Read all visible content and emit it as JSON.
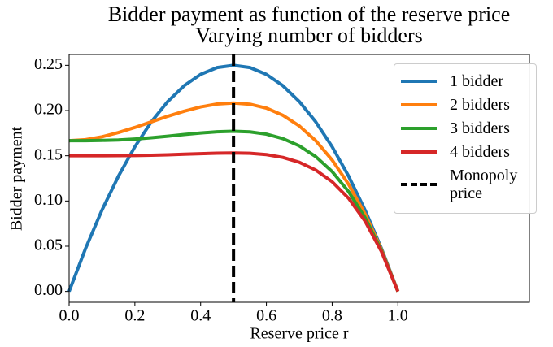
{
  "chart_data": {
    "type": "line",
    "title": "Bidder payment as function of the reserve price",
    "subtitle": "Varying number of bidders",
    "x_label": "Reserve price r",
    "y_label": "Bidder payment",
    "x": [
      0,
      0.05,
      0.1,
      0.15,
      0.2,
      0.25,
      0.3,
      0.35,
      0.4,
      0.45,
      0.5,
      0.55,
      0.6,
      0.65,
      0.7,
      0.75,
      0.8,
      0.85,
      0.9,
      0.95,
      1.0
    ],
    "series": [
      {
        "name": "1 bidder",
        "color": "#1f77b4",
        "values": [
          0,
          0.0475,
          0.09,
          0.1275,
          0.16,
          0.1875,
          0.21,
          0.2275,
          0.24,
          0.2475,
          0.25,
          0.2475,
          0.24,
          0.2275,
          0.21,
          0.1875,
          0.16,
          0.1275,
          0.09,
          0.0475,
          0
        ]
      },
      {
        "name": "2 bidders",
        "color": "#ff7f0e",
        "values": [
          0.1667,
          0.1678,
          0.171,
          0.1757,
          0.1813,
          0.1875,
          0.1937,
          0.1993,
          0.204,
          0.2072,
          0.2083,
          0.207,
          0.2027,
          0.1948,
          0.183,
          0.1667,
          0.1453,
          0.1185,
          0.0857,
          0.0463,
          0
        ]
      },
      {
        "name": "3 bidders",
        "color": "#2ca02c",
        "values": [
          0.1667,
          0.1667,
          0.167,
          0.1675,
          0.1685,
          0.1699,
          0.1716,
          0.1735,
          0.1752,
          0.1765,
          0.1771,
          0.1764,
          0.1739,
          0.169,
          0.161,
          0.1491,
          0.1325,
          0.1104,
          0.0816,
          0.0452,
          0
        ]
      },
      {
        "name": "4 bidders",
        "color": "#d62728",
        "values": [
          0.15,
          0.15,
          0.15,
          0.1501,
          0.1503,
          0.1506,
          0.1511,
          0.1517,
          0.1523,
          0.1529,
          0.1531,
          0.1527,
          0.1513,
          0.1482,
          0.1428,
          0.1342,
          0.1213,
          0.103,
          0.0778,
          0.0441,
          0
        ]
      }
    ],
    "vline": {
      "name": "Monopoly price",
      "x": 0.5,
      "color": "#000000"
    },
    "xlim": [
      0,
      1.4
    ],
    "xticks": [
      {
        "value": 0,
        "label": "0.0"
      },
      {
        "value": 0.2,
        "label": "0.2"
      },
      {
        "value": 0.4,
        "label": "0.4"
      },
      {
        "value": 0.6,
        "label": "0.6"
      },
      {
        "value": 0.8,
        "label": "0.8"
      },
      {
        "value": 1.0,
        "label": "1.0"
      }
    ],
    "ylim": [
      -0.012,
      0.262
    ],
    "yticks": [
      {
        "value": 0,
        "label": "0.00"
      },
      {
        "value": 0.05,
        "label": "0.05"
      },
      {
        "value": 0.1,
        "label": "0.10"
      },
      {
        "value": 0.15,
        "label": "0.15"
      },
      {
        "value": 0.2,
        "label": "0.20"
      },
      {
        "value": 0.25,
        "label": "0.25"
      }
    ],
    "legend": "upper right",
    "grid": false
  }
}
